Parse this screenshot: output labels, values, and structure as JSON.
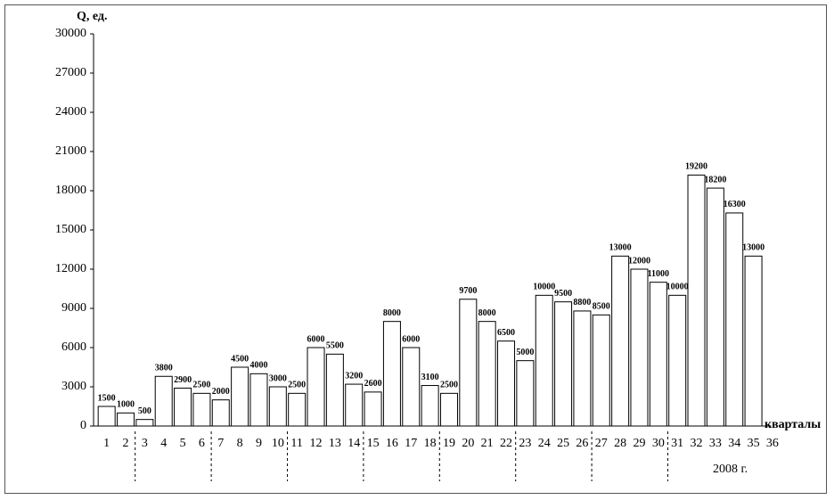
{
  "chart_data": {
    "type": "bar",
    "y_label": "Q, ед.",
    "x_label": "кварталы",
    "annotation": "2008 г.",
    "categories": [
      "1",
      "2",
      "3",
      "4",
      "5",
      "6",
      "7",
      "8",
      "9",
      "10",
      "11",
      "12",
      "13",
      "14",
      "15",
      "16",
      "17",
      "18",
      "19",
      "20",
      "21",
      "22",
      "23",
      "24",
      "25",
      "26",
      "27",
      "28",
      "29",
      "30",
      "31",
      "32",
      "33",
      "34",
      "35",
      "36"
    ],
    "values": [
      1500,
      1000,
      500,
      3800,
      2900,
      2500,
      2000,
      4500,
      4000,
      3000,
      2500,
      6000,
      5500,
      3200,
      2600,
      8000,
      6000,
      3100,
      2500,
      9700,
      8000,
      6500,
      5000,
      10000,
      9500,
      8800,
      8500,
      13000,
      12000,
      11000,
      10000,
      19200,
      18200,
      16300,
      13000,
      null
    ],
    "color": "#ffffff",
    "ylim": [
      0,
      30000
    ],
    "yticks": [
      0,
      3000,
      6000,
      9000,
      12000,
      15000,
      18000,
      21000,
      24000,
      27000,
      30000
    ],
    "grid": false
  }
}
